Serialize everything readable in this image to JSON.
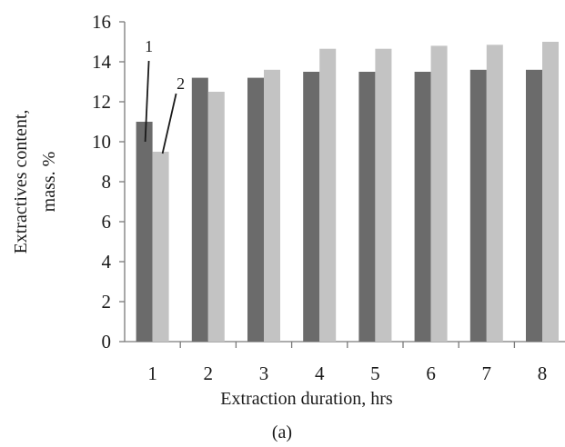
{
  "chart_data": {
    "type": "bar",
    "categories": [
      "1",
      "2",
      "3",
      "4",
      "5",
      "6",
      "7",
      "8"
    ],
    "series": [
      {
        "name": "1",
        "values": [
          11.0,
          13.2,
          13.2,
          13.5,
          13.5,
          13.5,
          13.6,
          13.6
        ],
        "color": "#6b6b6b"
      },
      {
        "name": "2",
        "values": [
          9.5,
          12.5,
          13.6,
          14.65,
          14.65,
          14.8,
          14.85,
          15.0
        ],
        "color": "#c3c3c3"
      }
    ],
    "xlabel": "Extraction duration, hrs",
    "ylabel": [
      "Extractives content,",
      "mass. %"
    ],
    "ylim": [
      0,
      16
    ],
    "yticks": [
      0,
      2,
      4,
      6,
      8,
      10,
      12,
      14,
      16
    ],
    "grid": false,
    "legend": "callout labels on first category",
    "panel_label": "(a)"
  }
}
